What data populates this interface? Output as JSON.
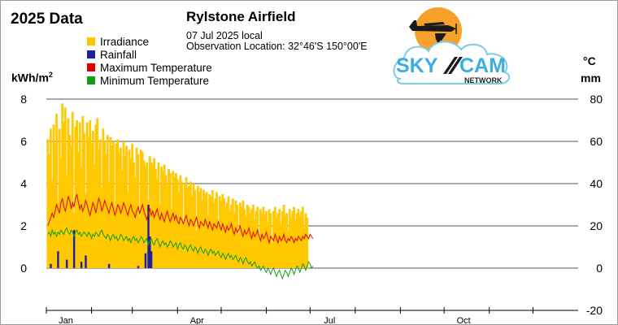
{
  "header": {
    "left_title": "2025 Data",
    "station": "Rylstone Airfield",
    "date": "07 Jul 2025 local",
    "location": "Observation Location: 32°46'S 150°00'E"
  },
  "logo": {
    "word_left": "SKY",
    "word_right": "CAM",
    "sub": "NETWORK"
  },
  "colors": {
    "irradiance": "#ffc800",
    "rainfall": "#1f1fa0",
    "max_temp": "#e00000",
    "min_temp": "#10a010",
    "grid": "#555555"
  },
  "chart_data": {
    "type": "bar",
    "title": "Rylstone Airfield",
    "left_axis": {
      "label": "kWh/m",
      "label_sup": "2",
      "range": [
        0,
        8
      ],
      "ticks": [
        "8",
        "6",
        "4",
        "2",
        "0"
      ]
    },
    "right_axis": {
      "labels": [
        "°C",
        "mm"
      ],
      "range": [
        -20,
        80
      ],
      "ticks": [
        "80",
        "60",
        "40",
        "20",
        "0",
        "-20"
      ]
    },
    "x_axis": {
      "tick_labels": [
        "Jan",
        "Apr",
        "Jul",
        "Oct"
      ],
      "days_in_year": 365,
      "label_days": [
        0,
        90,
        181,
        273
      ],
      "tick_days": [
        0,
        31,
        59,
        90,
        120,
        151,
        181,
        212,
        243,
        273,
        304,
        334
      ]
    },
    "legend": [
      "Irradiance",
      "Rainfall",
      "Maximum Temperature",
      "Minimum Temperature"
    ],
    "series": [
      {
        "name": "Irradiance",
        "type": "bar",
        "axis": "left",
        "unit": "kWh/m2",
        "values": [
          6.1,
          5.4,
          6.6,
          4.2,
          6.8,
          5.9,
          7.3,
          3.1,
          6.6,
          5.2,
          7.8,
          6.9,
          7.6,
          4.4,
          7.1,
          6.3,
          5.8,
          7.4,
          2.6,
          6.7,
          7.0,
          5.5,
          6.9,
          4.8,
          7.2,
          6.4,
          3.5,
          6.9,
          6.2,
          7.0,
          5.9,
          6.5,
          4.9,
          6.8,
          7.1,
          5.6,
          6.1,
          3.8,
          6.6,
          6.0,
          5.4,
          6.3,
          4.1,
          6.2,
          5.8,
          6.0,
          2.9,
          5.9,
          6.1,
          5.5,
          5.7,
          4.6,
          6.0,
          5.3,
          5.8,
          3.6,
          5.6,
          5.2,
          5.9,
          5.0,
          4.3,
          5.7,
          5.4,
          2.4,
          5.6,
          5.5,
          5.1,
          4.8,
          5.0,
          3.2,
          5.3,
          5.0,
          4.9,
          5.2,
          4.7,
          4.2,
          5.0,
          3.0,
          4.8,
          4.6,
          4.9,
          4.4,
          3.9,
          4.7,
          4.5,
          2.8,
          4.6,
          4.3,
          4.5,
          4.2,
          3.6,
          4.4,
          4.1,
          2.2,
          4.0,
          4.3,
          3.8,
          3.9,
          4.1,
          3.4,
          4.0,
          3.7,
          1.8,
          3.9,
          3.6,
          3.8,
          3.2,
          3.7,
          3.5,
          3.6,
          2.5,
          3.5,
          3.4,
          3.7,
          3.1,
          3.3,
          3.6,
          2.0,
          3.4,
          3.2,
          3.5,
          3.3,
          2.9,
          3.1,
          3.4,
          2.7,
          3.0,
          3.3,
          2.6,
          3.2,
          3.0,
          1.6,
          3.1,
          2.9,
          3.2,
          2.8,
          2.5,
          3.0,
          2.9,
          2.6,
          2.8,
          3.0,
          2.3,
          2.7,
          2.9,
          1.4,
          2.8,
          2.6,
          2.9,
          2.5,
          2.7,
          2.2,
          2.8,
          2.6,
          1.2,
          2.7,
          2.9,
          2.4,
          2.6,
          2.8,
          2.1,
          2.7,
          3.0,
          2.5,
          2.6,
          1.8,
          2.8,
          2.4,
          2.7,
          2.9,
          2.3,
          2.6,
          2.8,
          2.5,
          2.7,
          2.9,
          1.9,
          2.6,
          2.4
        ]
      },
      {
        "name": "Rainfall",
        "type": "bar",
        "axis": "right",
        "unit": "mm",
        "values": [
          0,
          0,
          2,
          0,
          0,
          0,
          0,
          8,
          0,
          0,
          0,
          0,
          0,
          4,
          0,
          0,
          0,
          0,
          18,
          0,
          0,
          0,
          0,
          3,
          0,
          0,
          6,
          0,
          0,
          0,
          0,
          0,
          0,
          0,
          0,
          0,
          0,
          0,
          0,
          0,
          0,
          0,
          2,
          0,
          0,
          0,
          0,
          0,
          0,
          0,
          0,
          0,
          0,
          0,
          0,
          0,
          0,
          0,
          0,
          0,
          0,
          0,
          1,
          0,
          0,
          0,
          0,
          7,
          0,
          30,
          15,
          8,
          0,
          0,
          0,
          0,
          0,
          0,
          0,
          0,
          0,
          0,
          0,
          0,
          0,
          0,
          0,
          0,
          0,
          0,
          0,
          0,
          0,
          0,
          0,
          0,
          0,
          0,
          0,
          0,
          0,
          0,
          0,
          0,
          0,
          0,
          0,
          0,
          0,
          0,
          0,
          0,
          0,
          0,
          0,
          0,
          0,
          0,
          0,
          0,
          0,
          0,
          0,
          0,
          0,
          0,
          0,
          0,
          0,
          0,
          0,
          0,
          0,
          0,
          0,
          0,
          0,
          0,
          0,
          0,
          0,
          0,
          0,
          0,
          0,
          0,
          0,
          0,
          0,
          0,
          0,
          0,
          0,
          0,
          0,
          0,
          0,
          0,
          0,
          0,
          0,
          0,
          0,
          0,
          0,
          0,
          0,
          0,
          0,
          0,
          0,
          0,
          0,
          0,
          0,
          0,
          0,
          0,
          0,
          0,
          0,
          0,
          0,
          0,
          0,
          0,
          0
        ]
      },
      {
        "name": "Maximum Temperature",
        "type": "line",
        "axis": "right",
        "unit": "°C",
        "values": [
          20,
          22,
          24,
          26,
          24,
          27,
          30,
          28,
          26,
          31,
          33,
          29,
          27,
          30,
          34,
          32,
          28,
          31,
          29,
          33,
          35,
          31,
          28,
          30,
          27,
          29,
          32,
          30,
          27,
          25,
          28,
          31,
          29,
          26,
          30,
          33,
          31,
          27,
          29,
          32,
          30,
          28,
          26,
          29,
          31,
          28,
          25,
          27,
          30,
          29,
          26,
          28,
          31,
          29,
          27,
          25,
          28,
          30,
          27,
          26,
          24,
          27,
          29,
          26,
          28,
          30,
          27,
          25,
          23,
          26,
          28,
          25,
          27,
          24,
          26,
          28,
          25,
          23,
          26,
          24,
          22,
          25,
          27,
          24,
          22,
          24,
          26,
          23,
          25,
          22,
          21,
          24,
          23,
          21,
          23,
          25,
          22,
          20,
          23,
          22,
          20,
          22,
          24,
          21,
          19,
          22,
          21,
          20,
          23,
          21,
          19,
          22,
          20,
          18,
          21,
          20,
          19,
          22,
          20,
          18,
          21,
          19,
          17,
          20,
          18,
          19,
          21,
          18,
          16,
          19,
          17,
          18,
          20,
          17,
          15,
          18,
          16,
          17,
          19,
          16,
          14,
          17,
          15,
          16,
          18,
          15,
          13,
          16,
          14,
          15,
          17,
          14,
          12,
          15,
          14,
          13,
          16,
          14,
          12,
          15,
          13,
          14,
          16,
          13,
          12,
          14,
          13,
          15,
          14,
          12,
          14,
          13,
          15,
          14,
          13,
          15,
          14,
          16,
          15,
          14,
          16,
          15,
          14
        ]
      },
      {
        "name": "Minimum Temperature",
        "type": "line",
        "axis": "right",
        "unit": "°C",
        "values": [
          16,
          17,
          15,
          18,
          16,
          17,
          15,
          17,
          16,
          18,
          17,
          16,
          18,
          19,
          17,
          16,
          18,
          17,
          15,
          17,
          18,
          16,
          17,
          15,
          16,
          17,
          16,
          15,
          17,
          16,
          14,
          16,
          15,
          17,
          16,
          15,
          17,
          18,
          16,
          15,
          14,
          16,
          15,
          13,
          15,
          16,
          14,
          15,
          13,
          14,
          16,
          15,
          13,
          14,
          15,
          13,
          14,
          12,
          14,
          15,
          13,
          14,
          12,
          13,
          15,
          14,
          12,
          13,
          14,
          11,
          13,
          14,
          12,
          11,
          13,
          14,
          12,
          10,
          12,
          13,
          11,
          12,
          10,
          11,
          13,
          12,
          10,
          11,
          12,
          9,
          11,
          12,
          10,
          9,
          11,
          10,
          8,
          10,
          11,
          9,
          8,
          10,
          9,
          7,
          9,
          10,
          8,
          7,
          9,
          8,
          6,
          8,
          9,
          7,
          8,
          6,
          7,
          8,
          6,
          5,
          7,
          6,
          4,
          6,
          7,
          5,
          6,
          4,
          5,
          6,
          4,
          3,
          5,
          4,
          2,
          4,
          5,
          3,
          2,
          3,
          1,
          2,
          3,
          1,
          0,
          1,
          -1,
          0,
          1,
          -1,
          -2,
          0,
          -1,
          -3,
          -1,
          0,
          -2,
          -4,
          -2,
          -1,
          -3,
          -5,
          -3,
          -1,
          -2,
          -4,
          -2,
          0,
          -1,
          -3,
          -1,
          1,
          0,
          -2,
          0,
          2,
          1,
          -1,
          1,
          3,
          2,
          0,
          1
        ]
      }
    ]
  }
}
